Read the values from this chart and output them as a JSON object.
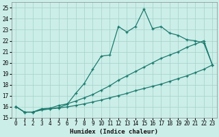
{
  "title": "",
  "xlabel": "Humidex (Indice chaleur)",
  "ylabel": "",
  "bg_color": "#cceee8",
  "grid_color": "#aad4ce",
  "line_color": "#1a7a6e",
  "xlim": [
    -0.5,
    23.5
  ],
  "ylim": [
    15,
    25.5
  ],
  "xticks": [
    0,
    1,
    2,
    3,
    4,
    5,
    6,
    7,
    8,
    9,
    10,
    11,
    12,
    13,
    14,
    15,
    16,
    17,
    18,
    19,
    20,
    21,
    22,
    23
  ],
  "yticks": [
    15,
    16,
    17,
    18,
    19,
    20,
    21,
    22,
    23,
    24,
    25
  ],
  "curve1_x": [
    0,
    1,
    2,
    3,
    4,
    5,
    6,
    7,
    8,
    9,
    10,
    11,
    12,
    13,
    14,
    15,
    16,
    17,
    18,
    19,
    20,
    21,
    22,
    23
  ],
  "curve1_y": [
    16.0,
    15.5,
    15.5,
    15.7,
    15.8,
    15.9,
    16.2,
    17.2,
    18.1,
    19.4,
    20.6,
    20.7,
    23.3,
    22.8,
    23.3,
    24.9,
    23.1,
    23.3,
    22.7,
    22.5,
    22.1,
    22.0,
    21.8,
    19.8
  ],
  "curve2_x": [
    0,
    1,
    2,
    3,
    4,
    5,
    6,
    7,
    8,
    9,
    10,
    11,
    12,
    13,
    14,
    15,
    16,
    17,
    18,
    19,
    20,
    21,
    22,
    23
  ],
  "curve2_y": [
    16.0,
    15.5,
    15.5,
    15.8,
    15.85,
    16.1,
    16.25,
    16.5,
    16.8,
    17.1,
    17.5,
    17.9,
    18.4,
    18.8,
    19.2,
    19.6,
    20.0,
    20.4,
    20.7,
    21.0,
    21.4,
    21.7,
    22.0,
    19.8
  ],
  "curve3_x": [
    0,
    1,
    2,
    3,
    4,
    5,
    6,
    7,
    8,
    9,
    10,
    11,
    12,
    13,
    14,
    15,
    16,
    17,
    18,
    19,
    20,
    21,
    22,
    23
  ],
  "curve3_y": [
    16.0,
    15.5,
    15.5,
    15.7,
    15.78,
    15.87,
    15.97,
    16.1,
    16.25,
    16.42,
    16.6,
    16.8,
    17.0,
    17.2,
    17.45,
    17.65,
    17.85,
    18.05,
    18.3,
    18.55,
    18.8,
    19.1,
    19.4,
    19.8
  ]
}
